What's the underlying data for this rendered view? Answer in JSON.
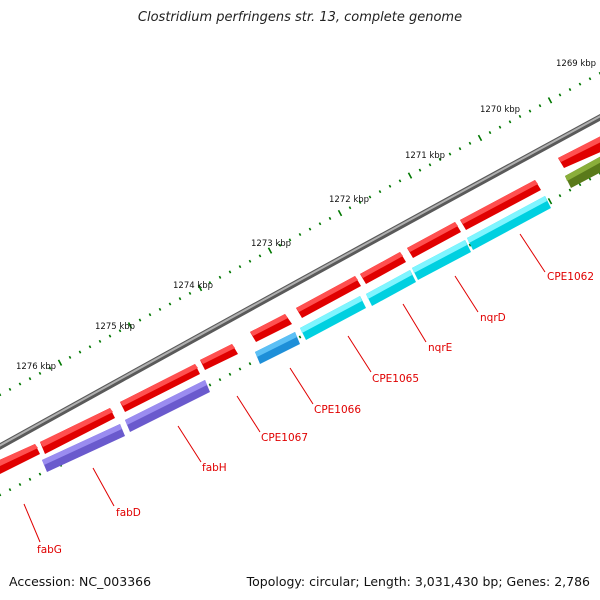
{
  "title": "Clostridium perfringens str. 13, complete genome",
  "accession": "Accession: NC_003366",
  "topology": "Topology: circular; Length: 3,031,430 bp; Genes: 2,786",
  "scale_labels": [
    "1269 kbp",
    "1270 kbp",
    "1271 kbp",
    "1272 kbp",
    "1273 kbp",
    "1274 kbp",
    "1275 kbp",
    "1276 kbp"
  ],
  "gene_labels": [
    "CPE1062",
    "nqrD",
    "nqrE",
    "CPE1065",
    "CPE1066",
    "CPE1067",
    "fabH",
    "fabD",
    "fabG"
  ],
  "colors": {
    "backbone": "#8e8e8e",
    "forward_gene": "#ff0000",
    "cyan_gene": "#00e5ee",
    "blue_gene": "#1ea0e8",
    "purple_gene": "#7b68ee",
    "olive_gene": "#6b8e23",
    "tick": "#007700",
    "label": "#e00000"
  }
}
